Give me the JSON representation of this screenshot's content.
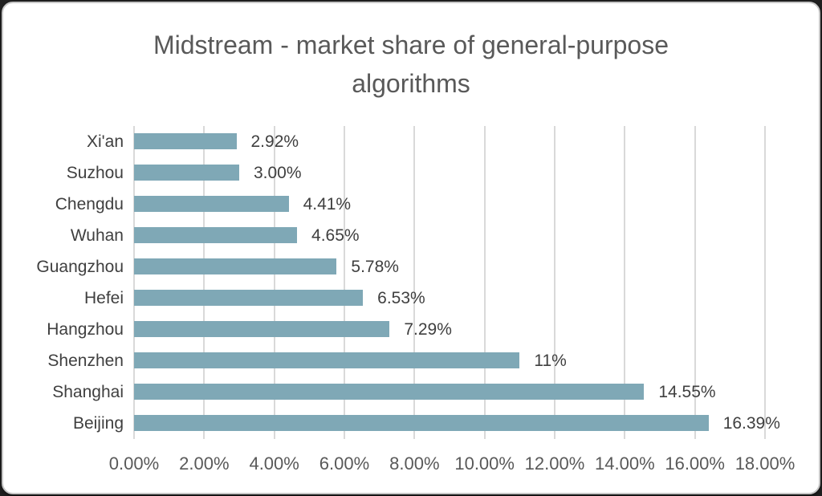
{
  "chart_data": {
    "type": "bar",
    "orientation": "horizontal",
    "title": "Midstream - market share of general-purpose algorithms",
    "title_lines": [
      "Midstream - market share of general-purpose",
      "algorithms"
    ],
    "categories": [
      "Xi'an",
      "Suzhou",
      "Chengdu",
      "Wuhan",
      "Guangzhou",
      "Hefei",
      "Hangzhou",
      "Shenzhen",
      "Shanghai",
      "Beijing"
    ],
    "values": [
      2.92,
      3.0,
      4.41,
      4.65,
      5.78,
      6.53,
      7.29,
      11,
      14.55,
      16.39
    ],
    "value_labels": [
      "2.92%",
      "3.00%",
      "4.41%",
      "4.65%",
      "5.78%",
      "6.53%",
      "7.29%",
      "11%",
      "14.55%",
      "16.39%"
    ],
    "x_ticks": [
      "0.00%",
      "2.00%",
      "4.00%",
      "6.00%",
      "8.00%",
      "10.00%",
      "12.00%",
      "14.00%",
      "16.00%",
      "18.00%"
    ],
    "xlim": [
      0,
      18
    ],
    "grid": true,
    "legend": "none",
    "bar_color": "#7FA8B6",
    "gridline_color": "#D9D9D9",
    "title_color": "#595959",
    "label_color": "#3F3F3F",
    "tick_color": "#595959"
  }
}
